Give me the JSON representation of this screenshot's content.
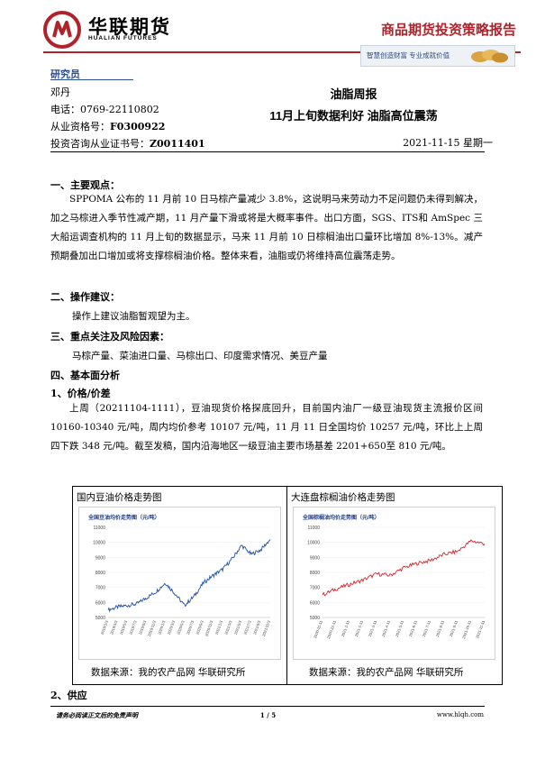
{
  "header": {
    "company_cn": "华联期货",
    "company_en": "HUALIAN FUTURES",
    "report_type": "商品期货投资策略报告",
    "slogan": "智慧创造财富  专业成就价值"
  },
  "analyst": {
    "heading": "研究员",
    "name": "邓丹",
    "phone": "电话：0769-22110802",
    "qualification_label": "从业资格号：",
    "qualification_no": "F0300922",
    "consult_label": "投资咨询从业证书号：",
    "consult_no": "Z0011401"
  },
  "report": {
    "title": "油脂周报",
    "subtitle": "11月上旬数据利好  油脂高位震荡",
    "date": "2021-11-15 星期一"
  },
  "sections": {
    "s1_heading": "一、主要观点：",
    "s1_lines": [
      "SPPOMA 公布的 11 月前 10 日马棕产量减少 3.8%，这说明马来劳动力不足问题仍未得到",
      "解决，加之马棕进入季节性减产期，11 月产量下滑或将是大概率事件。出口方面，SGS、ITS",
      "和 AmSpec 三大船运调查机构的 11 月上旬的数据显示，马来 11 月前 10 日棕榈油出口量环",
      "比增加 8%-13%。减产预期叠加出口增加或将支撑棕榈油价格。整体来看，油脂或仍将维持",
      "高位震荡走势。"
    ],
    "s2_heading": "二、操作建议：",
    "s2_text": "操作上建议油脂暂观望为主。",
    "s3_heading": "三、重点关注及风险因素：",
    "s3_text": "马棕产量、菜油进口量、马棕出口、印度需求情况、美豆产量",
    "s4_heading": "四、基本面分析",
    "s4_1_heading": "1、价格/价差",
    "s4_1_lines": [
      "上周（20211104-1111），豆油现货价格探底回升，目前国内油厂一级豆油现货主流报",
      "价区间 10160-10340 元/吨，周内均价参考 10107 元/吨，11 月 11 日全国均价 10257 元/吨，",
      "环比上上周四下跌 348 元/吨。截至发稿，国内沿海地区一级豆油主要市场基差 2201+650",
      "至 810 元/吨。"
    ],
    "s4_2_heading": "2、供应"
  },
  "charts": {
    "left_caption": "国内豆油价格走势图",
    "right_caption": "大连盘棕榈油价格走势图",
    "source": "数据来源：我的农产品网  华联研究所"
  },
  "chart_data": [
    {
      "type": "line",
      "title": "全国豆油均价走势图（元/吨）",
      "ylim": [
        5000,
        11000
      ],
      "yticks": [
        5000,
        6000,
        7000,
        8000,
        9000,
        10000,
        11000
      ],
      "x": [
        "2019/1/3",
        "2019/3/3",
        "2019/5/3",
        "2019/7/3",
        "2019/9/3",
        "2019/11/3",
        "2020/1/3",
        "2020/3/3",
        "2020/5/3",
        "2020/7/3",
        "2020/9/3",
        "2020/11/3",
        "2021/1/3",
        "2021/3/3",
        "2021/5/3",
        "2021/7/3",
        "2021/9/3",
        "2021/11/3"
      ],
      "series": [
        {
          "values": [
            5500,
            5700,
            5800,
            5900,
            6300,
            6700,
            7300,
            6600,
            5800,
            6400,
            7300,
            7800,
            8200,
            8900,
            9800,
            9200,
            9500,
            10200
          ]
        }
      ],
      "color": "#1f4fa0"
    },
    {
      "type": "line",
      "title": "全国棕榈油均价走势图（元/吨）",
      "ylim": [
        5000,
        11000
      ],
      "yticks": [
        5000,
        6000,
        7000,
        8000,
        9000,
        10000,
        11000
      ],
      "x": [
        "2020-11-11",
        "2020-12-11",
        "2021-1-11",
        "2021-2-11",
        "2021-3-11",
        "2021-4-11",
        "2021-5-11",
        "2021-6-11",
        "2021-7-11",
        "2021-8-11",
        "2021-9-11",
        "2021-10-11",
        "2021-11-11"
      ],
      "series": [
        {
          "values": [
            6500,
            6900,
            7200,
            7500,
            7900,
            7800,
            8300,
            8600,
            8800,
            9200,
            9400,
            10100,
            9900
          ]
        }
      ],
      "color": "#d2232a"
    }
  ],
  "footer": {
    "disclaimer": "请务必阅读正文后的免责声明",
    "page": "1 / 5",
    "url": "www.hlqh.com"
  },
  "colors": {
    "brand_red": "#b1232a",
    "brand_blue": "#2a4d8f"
  }
}
